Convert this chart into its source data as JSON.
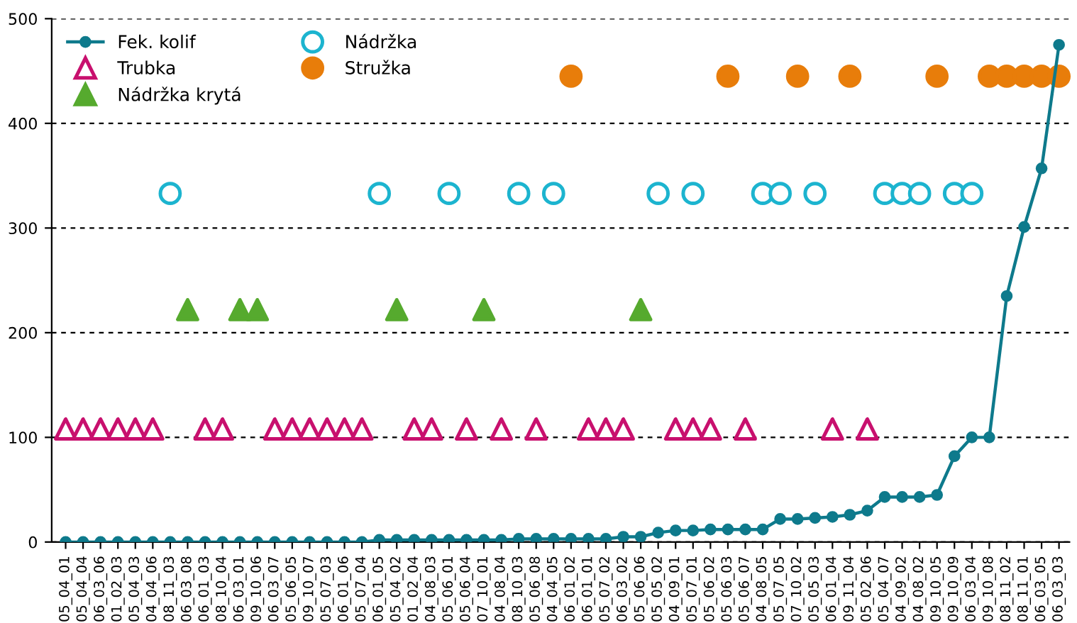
{
  "chart_data": {
    "type": "line",
    "categories": [
      "05_04_01",
      "05_04_04",
      "06_03_06",
      "01_02_03",
      "05_04_03",
      "04_04_06",
      "08_11_03",
      "06_03_08",
      "06_01_03",
      "08_10_04",
      "06_03_01",
      "09_10_06",
      "06_03_07",
      "05_06_05",
      "09_10_07",
      "05_07_03",
      "06_01_06",
      "05_07_04",
      "06_01_05",
      "05_04_02",
      "01_02_04",
      "04_08_03",
      "05_06_01",
      "05_06_04",
      "07_10_01",
      "04_08_04",
      "08_10_03",
      "05_06_08",
      "04_04_05",
      "06_01_02",
      "06_01_01",
      "05_07_02",
      "06_03_02",
      "05_06_06",
      "05_05_02",
      "04_09_01",
      "05_07_01",
      "05_06_02",
      "05_06_03",
      "05_06_07",
      "04_08_05",
      "05_07_05",
      "07_10_02",
      "05_05_03",
      "06_01_04",
      "09_11_04",
      "05_02_06",
      "05_04_07",
      "04_09_02",
      "04_08_02",
      "09_10_05",
      "09_10_09",
      "06_03_04",
      "09_10_08",
      "08_11_02",
      "08_11_01",
      "06_03_05",
      "06_03_03"
    ],
    "series": [
      {
        "name": "Fek. kolif",
        "marker": "circle",
        "color": "#0e7a8c",
        "values": [
          0,
          0,
          0,
          0,
          0,
          0,
          0,
          0,
          0,
          0,
          0,
          0,
          0,
          0,
          0,
          0,
          0,
          0,
          2,
          2,
          2,
          2,
          2,
          2,
          2,
          2,
          3,
          3,
          3,
          3,
          3,
          3,
          5,
          5,
          9,
          11,
          11,
          12,
          12,
          12,
          12,
          22,
          22,
          23,
          24,
          26,
          30,
          43,
          43,
          43,
          45,
          82,
          100,
          100,
          235,
          301,
          357,
          475
        ]
      },
      {
        "name": "Trubka",
        "type": "scatter",
        "marker": "triangle",
        "color": "#c8106e",
        "values": [
          108,
          108,
          108,
          108,
          108,
          108,
          null,
          null,
          108,
          108,
          null,
          null,
          108,
          108,
          108,
          108,
          108,
          108,
          null,
          null,
          108,
          108,
          null,
          108,
          null,
          108,
          null,
          108,
          null,
          null,
          108,
          108,
          108,
          null,
          null,
          108,
          108,
          108,
          null,
          108,
          null,
          null,
          null,
          null,
          108,
          null,
          108,
          null,
          null,
          null,
          null,
          null,
          null,
          null,
          null,
          null,
          null,
          null
        ]
      },
      {
        "name": "Nádržka krytá",
        "type": "scatter",
        "marker": "triangle",
        "color": "#56aa2e",
        "values": [
          null,
          null,
          null,
          null,
          null,
          null,
          null,
          222,
          null,
          null,
          222,
          222,
          null,
          null,
          null,
          null,
          null,
          null,
          null,
          222,
          null,
          null,
          null,
          null,
          222,
          null,
          null,
          null,
          null,
          null,
          null,
          null,
          null,
          222,
          null,
          null,
          null,
          null,
          null,
          null,
          null,
          null,
          null,
          null,
          null,
          null,
          null,
          null,
          null,
          null,
          null,
          null,
          null,
          null,
          null,
          null,
          null,
          null
        ]
      },
      {
        "name": "Nádržka",
        "type": "scatter",
        "marker": "circle",
        "color": "#1cb4cf",
        "values": [
          null,
          null,
          null,
          null,
          null,
          null,
          333,
          null,
          null,
          null,
          null,
          null,
          null,
          null,
          null,
          null,
          null,
          null,
          333,
          null,
          null,
          null,
          333,
          null,
          null,
          null,
          333,
          null,
          333,
          null,
          null,
          null,
          null,
          null,
          333,
          null,
          333,
          null,
          null,
          null,
          333,
          333,
          null,
          333,
          null,
          null,
          null,
          333,
          333,
          333,
          null,
          333,
          333,
          null,
          null,
          null,
          null,
          null
        ]
      },
      {
        "name": "Stružka",
        "type": "scatter",
        "marker": "circle",
        "color": "#e87d0a",
        "values": [
          null,
          null,
          null,
          null,
          null,
          null,
          null,
          null,
          null,
          null,
          null,
          null,
          null,
          null,
          null,
          null,
          null,
          null,
          null,
          null,
          null,
          null,
          null,
          null,
          null,
          null,
          null,
          null,
          null,
          445,
          null,
          null,
          null,
          null,
          null,
          null,
          null,
          null,
          445,
          null,
          null,
          null,
          445,
          null,
          null,
          445,
          null,
          null,
          null,
          null,
          445,
          null,
          null,
          445,
          445,
          445,
          445,
          445
        ]
      }
    ],
    "ylim": [
      0,
      500
    ],
    "yticks": [
      0,
      100,
      200,
      300,
      400,
      500
    ],
    "grid": "y",
    "legend": "top left"
  }
}
